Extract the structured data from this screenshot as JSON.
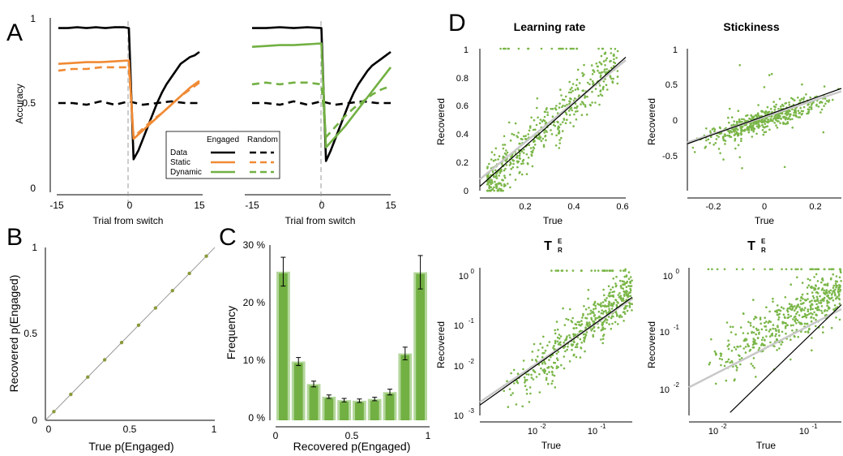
{
  "panel_labels": {
    "a": "A",
    "b": "B",
    "c": "C",
    "d": "D"
  },
  "colors": {
    "data": "#000000",
    "static": "#f08a34",
    "dynamic": "#72b043",
    "dot": "#7ab648",
    "bar": "#72b043",
    "bar_light": "#b4d79c",
    "identity": "#9a9a9a",
    "fit_light": "#b8b8b8"
  },
  "chart_data": [
    {
      "id": "A-left",
      "type": "line",
      "xlabel": "Trial from switch",
      "ylabel": "Accuracy",
      "xticks": [
        "-15",
        "0",
        "15"
      ],
      "yticks": [
        "0",
        "0.5",
        "1"
      ],
      "xlim": [
        -15,
        15
      ],
      "ylim": [
        0,
        1
      ],
      "vline": 0,
      "series": [
        {
          "name": "Data",
          "style": "solid",
          "color": "#000000",
          "x": [
            -15,
            -13,
            -11,
            -9,
            -7,
            -5,
            -3,
            -1,
            0,
            1,
            2,
            3,
            4,
            5,
            6,
            7,
            8,
            9,
            10,
            11,
            12,
            13,
            14,
            15
          ],
          "y": [
            0.94,
            0.94,
            0.945,
            0.94,
            0.945,
            0.94,
            0.945,
            0.945,
            0.94,
            0.17,
            0.22,
            0.29,
            0.36,
            0.43,
            0.5,
            0.56,
            0.61,
            0.65,
            0.69,
            0.73,
            0.75,
            0.77,
            0.78,
            0.8
          ]
        },
        {
          "name": "Data",
          "style": "dashed",
          "color": "#000000",
          "x": [
            -15,
            -12,
            -9,
            -6,
            -3,
            0,
            3,
            6,
            9,
            12,
            15
          ],
          "y": [
            0.5,
            0.5,
            0.49,
            0.51,
            0.49,
            0.51,
            0.49,
            0.5,
            0.51,
            0.5,
            0.5
          ]
        },
        {
          "name": "Static",
          "style": "solid",
          "color": "#f08a34",
          "x": [
            -15,
            -12,
            -9,
            -6,
            -3,
            0,
            1,
            3,
            5,
            7,
            9,
            11,
            13,
            15
          ],
          "y": [
            0.73,
            0.735,
            0.74,
            0.74,
            0.745,
            0.75,
            0.29,
            0.34,
            0.39,
            0.44,
            0.49,
            0.54,
            0.59,
            0.63
          ]
        },
        {
          "name": "Static",
          "style": "dashed",
          "color": "#f08a34",
          "x": [
            -15,
            -12,
            -9,
            -6,
            -3,
            0,
            1,
            3,
            5,
            7,
            9,
            11,
            13,
            15
          ],
          "y": [
            0.69,
            0.7,
            0.7,
            0.71,
            0.71,
            0.71,
            0.3,
            0.35,
            0.4,
            0.44,
            0.49,
            0.54,
            0.58,
            0.62
          ]
        }
      ]
    },
    {
      "id": "A-right",
      "type": "line",
      "xlabel": "Trial from switch",
      "ylabel": "",
      "xticks": [
        "-15",
        "0",
        "15"
      ],
      "xlim": [
        -15,
        15
      ],
      "ylim": [
        0,
        1
      ],
      "vline": 0,
      "legend": {
        "col_engaged": "Engaged",
        "col_random": "Random",
        "rows": [
          "Data",
          "Static",
          "Dynamic"
        ]
      },
      "series": [
        {
          "name": "Data",
          "style": "solid",
          "color": "#000000",
          "x": [
            -15,
            -12,
            -9,
            -6,
            -3,
            0,
            1,
            2,
            3,
            4,
            5,
            6,
            7,
            8,
            9,
            10,
            11,
            12,
            13,
            14,
            15
          ],
          "y": [
            0.94,
            0.94,
            0.945,
            0.94,
            0.945,
            0.94,
            0.16,
            0.22,
            0.29,
            0.36,
            0.43,
            0.5,
            0.56,
            0.61,
            0.65,
            0.69,
            0.72,
            0.74,
            0.76,
            0.78,
            0.8
          ]
        },
        {
          "name": "Data",
          "style": "dashed",
          "color": "#000000",
          "x": [
            -15,
            -12,
            -9,
            -6,
            -3,
            0,
            3,
            6,
            9,
            12,
            15
          ],
          "y": [
            0.5,
            0.5,
            0.49,
            0.51,
            0.49,
            0.51,
            0.49,
            0.5,
            0.51,
            0.5,
            0.5
          ]
        },
        {
          "name": "Dynamic",
          "style": "solid",
          "color": "#72b043",
          "x": [
            -15,
            -12,
            -9,
            -6,
            -3,
            0,
            1,
            3,
            5,
            7,
            9,
            11,
            13,
            15
          ],
          "y": [
            0.83,
            0.835,
            0.84,
            0.84,
            0.845,
            0.85,
            0.24,
            0.3,
            0.36,
            0.43,
            0.5,
            0.57,
            0.64,
            0.71
          ]
        },
        {
          "name": "Dynamic",
          "style": "dashed",
          "color": "#72b043",
          "x": [
            -15,
            -12,
            -9,
            -6,
            -3,
            0,
            1,
            3,
            5,
            7,
            9,
            11,
            13,
            15
          ],
          "y": [
            0.61,
            0.62,
            0.61,
            0.62,
            0.62,
            0.61,
            0.3,
            0.36,
            0.42,
            0.47,
            0.51,
            0.55,
            0.58,
            0.6
          ]
        }
      ]
    },
    {
      "id": "B",
      "type": "scatter",
      "xlabel": "True p(Engaged)",
      "ylabel": "Recovered p(Engaged)",
      "xticks": [
        "0",
        "0.5",
        "1"
      ],
      "yticks": [
        "0",
        "0.5",
        "1"
      ],
      "xlim": [
        0,
        1
      ],
      "ylim": [
        0,
        1
      ],
      "identity_line": true,
      "points": [
        [
          0.05,
          0.05
        ],
        [
          0.15,
          0.15
        ],
        [
          0.25,
          0.25
        ],
        [
          0.35,
          0.35
        ],
        [
          0.45,
          0.45
        ],
        [
          0.55,
          0.55
        ],
        [
          0.65,
          0.65
        ],
        [
          0.75,
          0.75
        ],
        [
          0.85,
          0.85
        ],
        [
          0.95,
          0.95
        ]
      ]
    },
    {
      "id": "C",
      "type": "bar",
      "xlabel": "Recovered p(Engaged)",
      "ylabel": "Frequency",
      "xticks": [
        "0",
        "0.5",
        "1"
      ],
      "yticks": [
        "0 %",
        "10 %",
        "20 %",
        "30 %"
      ],
      "ylim": [
        0,
        30
      ],
      "categories": [
        0.05,
        0.15,
        0.25,
        0.35,
        0.45,
        0.55,
        0.65,
        0.75,
        0.85,
        0.95
      ],
      "values": [
        25.8,
        10.2,
        6.3,
        4.1,
        3.5,
        3.4,
        3.7,
        4.9,
        11.6,
        25.7
      ],
      "errors": [
        2.5,
        0.7,
        0.5,
        0.3,
        0.3,
        0.3,
        0.3,
        0.5,
        1.1,
        2.9
      ]
    },
    {
      "id": "D-lr",
      "type": "scatter",
      "title": "Learning rate",
      "xlabel": "True",
      "ylabel": "Recovered",
      "xticks": [
        "0.2",
        "0.4",
        "0.6"
      ],
      "yticks": [
        "0",
        "0.2",
        "0.4",
        "0.6",
        "0.8",
        "1"
      ],
      "xlim": [
        0.02,
        0.65
      ],
      "ylim": [
        0,
        1
      ],
      "fit": [
        0.0,
        1.05
      ],
      "identity_line": true
    },
    {
      "id": "D-st",
      "type": "scatter",
      "title": "Stickiness",
      "xlabel": "True",
      "ylabel": "Recovered",
      "xticks": [
        "-0.2",
        "0",
        "0.2"
      ],
      "yticks": [
        "-0.5",
        "0",
        "0.5",
        "1"
      ],
      "xlim": [
        -0.3,
        0.3
      ],
      "ylim": [
        -1.0,
        1.0
      ],
      "fit": [
        0.0,
        1.0
      ],
      "identity_line": true
    },
    {
      "id": "D-t1",
      "type": "scatter",
      "title": "T",
      "title_sup": "E",
      "title_sub": "R",
      "xlabel": "True",
      "ylabel": "Recovered",
      "log": true,
      "xticks": [
        "10",
        "10"
      ],
      "xtick_exp": [
        "-2",
        "-1"
      ],
      "yticks": [
        "10",
        "10",
        "10",
        "10"
      ],
      "ytick_exp": [
        "-3",
        "-2",
        "-1",
        "0"
      ],
      "xlim_log10": [
        -3.1,
        -0.5
      ],
      "ylim_log10": [
        -3,
        0
      ]
    },
    {
      "id": "D-t2",
      "type": "scatter",
      "title": "T",
      "title_sup": "E",
      "title_sub": "R",
      "xlabel": "True",
      "ylabel": "Recovered",
      "log": true,
      "xticks": [
        "10",
        "10"
      ],
      "xtick_exp": [
        "-2",
        "-1"
      ],
      "yticks": [
        "10",
        "10",
        "10"
      ],
      "ytick_exp": [
        "-2",
        "-1",
        "0"
      ],
      "xlim_log10": [
        -2.3,
        -0.7
      ],
      "ylim_log10": [
        -2.6,
        0
      ]
    }
  ]
}
